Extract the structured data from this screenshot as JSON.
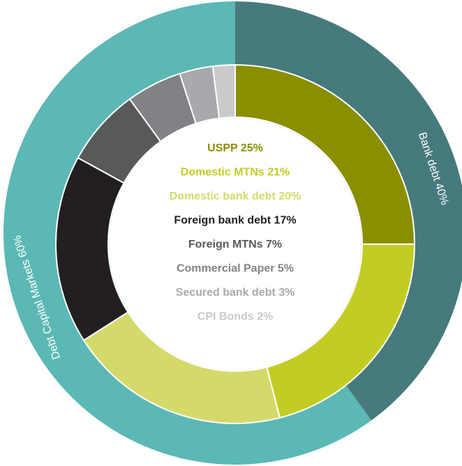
{
  "chart_data": [
    {
      "type": "donut",
      "categories": [
        "Bank debt 40%",
        "Debt Capital Markets 60%"
      ],
      "values": [
        40,
        60
      ],
      "colors": [
        "#467a7c",
        "#5bb8b5"
      ]
    },
    {
      "type": "donut",
      "categories": [
        "USPP 25%",
        "Domestic MTNs 21%",
        "Domestic bank debt 20%",
        "Foreign bank debt 17%",
        "Foreign MTNs 7%",
        "Commercial Paper 5%",
        "Secured bank debt 3%",
        "CPI Bonds 2%"
      ],
      "values": [
        25,
        21,
        20,
        17,
        7,
        5,
        3,
        2
      ],
      "colors": [
        "#8a8f00",
        "#c2cd23",
        "#d4da6a",
        "#231f20",
        "#58595b",
        "#808285",
        "#a7a9ac",
        "#c9cacc"
      ]
    }
  ]
}
